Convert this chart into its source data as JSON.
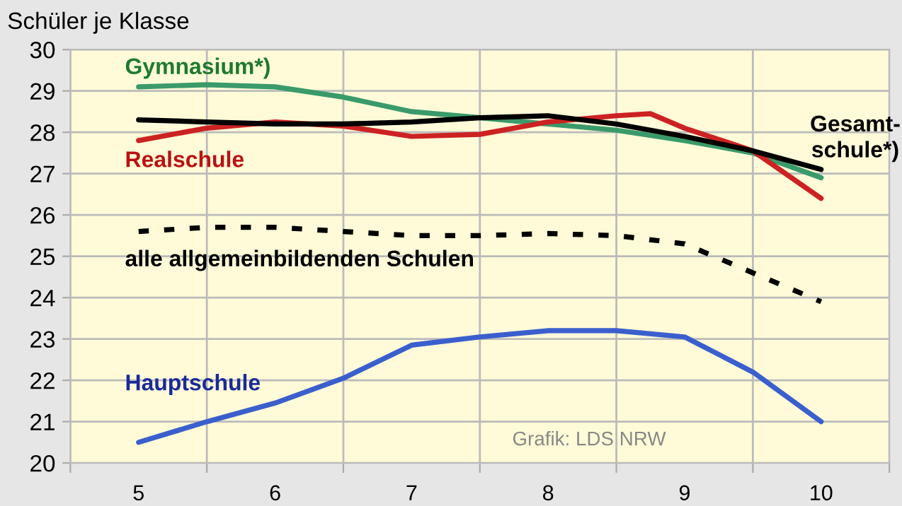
{
  "chart_data": {
    "type": "line",
    "ylabel": "Schüler je Klasse",
    "x": [
      5,
      5.5,
      6,
      6.5,
      7,
      7.5,
      8,
      8.5,
      9,
      9.5,
      10
    ],
    "xlim": [
      4.5,
      10.5
    ],
    "xticks": [
      {
        "value": 4.5,
        "label": null
      },
      5,
      {
        "value": 5.5,
        "label": null
      },
      6,
      {
        "value": 6.5,
        "label": null
      },
      7,
      {
        "value": 7.5,
        "label": null
      },
      8,
      {
        "value": 8.5,
        "label": null
      },
      9,
      {
        "value": 9.5,
        "label": null
      },
      10,
      {
        "value": 10.5,
        "label": null
      }
    ],
    "ylim": [
      20,
      30
    ],
    "yticks": [
      20,
      21,
      22,
      23,
      24,
      25,
      26,
      27,
      28,
      29,
      30
    ],
    "grid": true,
    "legend": false,
    "marker": "none",
    "series": [
      {
        "name": "Gymnasium*)",
        "color": "#3a9a6a",
        "values": [
          29.1,
          29.15,
          29.1,
          28.85,
          28.5,
          28.35,
          28.2,
          28.05,
          27.8,
          27.5,
          26.9
        ]
      },
      {
        "name": "Realschule",
        "color": "#cc2222",
        "x": [
          5,
          5.5,
          6,
          6.5,
          7,
          7.5,
          8,
          8.5,
          8.75,
          9,
          9.5,
          10
        ],
        "values": [
          27.8,
          28.1,
          28.25,
          28.15,
          27.9,
          27.95,
          28.25,
          28.4,
          28.45,
          28.1,
          27.55,
          26.4
        ]
      },
      {
        "name": "Gesamt-\nschule*)",
        "color": "#000000",
        "values": [
          28.3,
          28.25,
          28.2,
          28.2,
          28.25,
          28.35,
          28.4,
          28.2,
          27.9,
          27.55,
          27.1
        ]
      },
      {
        "name": "alle allgemeinbildenden Schulen",
        "color": "#000000",
        "line_style": "dashed",
        "values": [
          25.6,
          25.7,
          25.7,
          25.6,
          25.5,
          25.5,
          25.55,
          25.5,
          25.3,
          24.6,
          23.9
        ]
      },
      {
        "name": "Hauptschule",
        "color": "#3a5fcd",
        "values": [
          20.5,
          21.0,
          21.45,
          22.05,
          22.85,
          23.05,
          23.2,
          23.2,
          23.05,
          22.2,
          21.0
        ]
      }
    ],
    "annotations": [
      "Grafik: LDS NRW"
    ]
  }
}
